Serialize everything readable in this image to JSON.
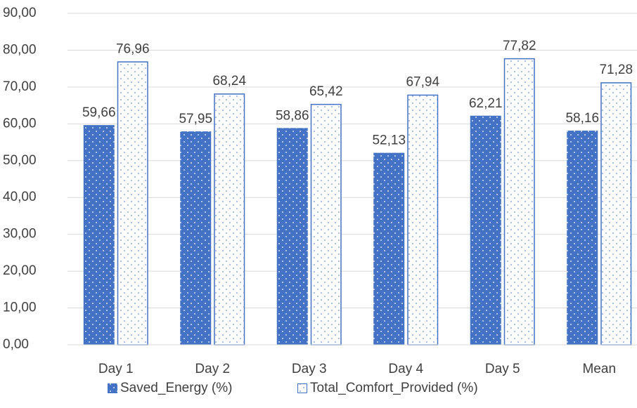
{
  "chart_data": {
    "type": "bar",
    "categories": [
      "Day 1",
      "Day 2",
      "Day 3",
      "Day 4",
      "Day 5",
      "Mean"
    ],
    "series": [
      {
        "name": "Saved_Energy (%)",
        "color": "#4472c4",
        "values": [
          59.66,
          57.95,
          58.86,
          52.13,
          62.21,
          58.16
        ],
        "value_labels": [
          "59,66",
          "57,95",
          "58,86",
          "52,13",
          "62,21",
          "58,16"
        ]
      },
      {
        "name": "Total_Comfort_Provided (%)",
        "color": "#4472c4",
        "values": [
          76.96,
          68.24,
          65.42,
          67.94,
          77.82,
          71.28
        ],
        "value_labels": [
          "76,96",
          "68,24",
          "65,42",
          "67,94",
          "77,82",
          "71,28"
        ]
      }
    ],
    "ylim": [
      0,
      90
    ],
    "yticks": [
      {
        "value": 0,
        "label": "0,00"
      },
      {
        "value": 10,
        "label": "10,00"
      },
      {
        "value": 20,
        "label": "20,00"
      },
      {
        "value": 30,
        "label": "30,00"
      },
      {
        "value": 40,
        "label": "40,00"
      },
      {
        "value": 50,
        "label": "50,00"
      },
      {
        "value": 60,
        "label": "60,00"
      },
      {
        "value": 70,
        "label": "70,00"
      },
      {
        "value": 80,
        "label": "80,00"
      },
      {
        "value": 90,
        "label": "90,00"
      }
    ],
    "grid": true,
    "legend": "bottom"
  }
}
